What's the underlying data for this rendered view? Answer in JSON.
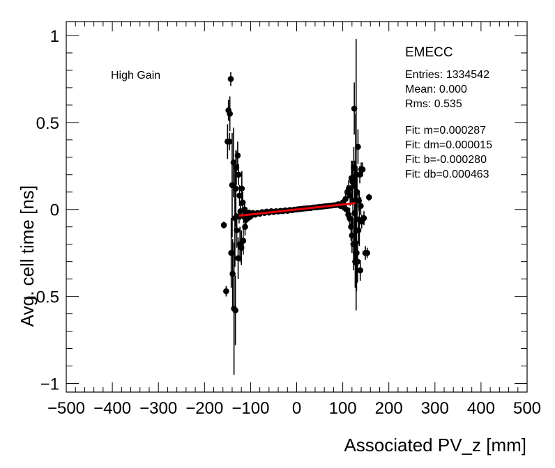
{
  "chart_data": {
    "type": "scatter",
    "xlabel": "Associated PV_z [mm]",
    "ylabel": "Avg. cell time [ns]",
    "xlim": [
      -500,
      500
    ],
    "ylim": [
      -1.05,
      1.08
    ],
    "x_ticks": [
      -500,
      -400,
      -300,
      -200,
      -100,
      0,
      100,
      200,
      300,
      400,
      500
    ],
    "x_tick_labels": [
      "−500",
      "−400",
      "−300",
      "−200",
      "−100",
      "0",
      "100",
      "200",
      "300",
      "400",
      "500"
    ],
    "y_ticks": [
      -1,
      -0.5,
      0,
      0.5,
      1
    ],
    "y_tick_labels": [
      "−1",
      "−0.5",
      "0",
      "0.5",
      "1"
    ],
    "grid": false,
    "annotations": {
      "gain_label": "High Gain",
      "region": "EMECC",
      "stats": [
        "Entries: 1334542",
        "Mean: 0.000",
        "Rms: 0.535"
      ],
      "fit": [
        "Fit: m=0.000287",
        "Fit: dm=0.000015",
        "Fit: b=-0.000280",
        "Fit: db=0.000463"
      ]
    },
    "fit_line": {
      "m": 0.000287,
      "b": -0.00028,
      "x_range": [
        -125,
        128
      ],
      "color": "#e8000b"
    },
    "marker_color": "#000000",
    "points": [
      {
        "x": -158,
        "y": -0.09,
        "e": 0.02
      },
      {
        "x": -153,
        "y": -0.47,
        "e": 0.03
      },
      {
        "x": -150,
        "y": 0.39,
        "e": 0.1
      },
      {
        "x": -148,
        "y": 0.57,
        "e": 0.06
      },
      {
        "x": -146,
        "y": 0.39,
        "e": 0.05
      },
      {
        "x": -145,
        "y": 0.55,
        "e": 0.1
      },
      {
        "x": -143,
        "y": 0.75,
        "e": 0.04
      },
      {
        "x": -142,
        "y": -0.25,
        "e": 0.2
      },
      {
        "x": -140,
        "y": 0.14,
        "e": 0.3
      },
      {
        "x": -139,
        "y": -0.37,
        "e": 0.2
      },
      {
        "x": -137,
        "y": 0.27,
        "e": 0.2
      },
      {
        "x": -136,
        "y": -0.57,
        "e": 0.38
      },
      {
        "x": -134,
        "y": -0.05,
        "e": 0.28
      },
      {
        "x": -133,
        "y": -0.58,
        "e": 0.2
      },
      {
        "x": -132,
        "y": 0.12,
        "e": 0.22
      },
      {
        "x": -131,
        "y": 0.24,
        "e": 0.1
      },
      {
        "x": -130,
        "y": -0.12,
        "e": 0.1
      },
      {
        "x": -128,
        "y": 0.31,
        "e": 0.08
      },
      {
        "x": -127,
        "y": -0.28,
        "e": 0.12
      },
      {
        "x": -126,
        "y": 0.2,
        "e": 0.06
      },
      {
        "x": -125,
        "y": -0.04,
        "e": 0.04
      },
      {
        "x": -124,
        "y": 0.08,
        "e": 0.06
      },
      {
        "x": -123,
        "y": -0.2,
        "e": 0.1
      },
      {
        "x": -122,
        "y": -0.01,
        "e": 0.05
      },
      {
        "x": -120,
        "y": -0.22,
        "e": 0.1
      },
      {
        "x": -119,
        "y": 0.12,
        "e": 0.1
      },
      {
        "x": -117,
        "y": 0.04,
        "e": 0.06
      },
      {
        "x": -116,
        "y": -0.18,
        "e": 0.08
      },
      {
        "x": -115,
        "y": -0.04,
        "e": 0.04
      },
      {
        "x": -113,
        "y": 0.0,
        "e": 0.05
      },
      {
        "x": -112,
        "y": -0.1,
        "e": 0.05
      },
      {
        "x": -110,
        "y": -0.06,
        "e": 0.03
      },
      {
        "x": -108,
        "y": -0.02,
        "e": 0.03
      },
      {
        "x": -106,
        "y": -0.05,
        "e": 0.02
      },
      {
        "x": -103,
        "y": -0.02,
        "e": 0.02
      },
      {
        "x": -100,
        "y": -0.04,
        "e": 0.02
      },
      {
        "x": -95,
        "y": -0.02,
        "e": 0.015
      },
      {
        "x": -90,
        "y": -0.03,
        "e": 0.015
      },
      {
        "x": -85,
        "y": -0.02,
        "e": 0.012
      },
      {
        "x": -80,
        "y": -0.025,
        "e": 0.012
      },
      {
        "x": -75,
        "y": -0.015,
        "e": 0.01
      },
      {
        "x": -70,
        "y": -0.02,
        "e": 0.01
      },
      {
        "x": -65,
        "y": -0.012,
        "e": 0.01
      },
      {
        "x": -60,
        "y": -0.018,
        "e": 0.008
      },
      {
        "x": -55,
        "y": -0.01,
        "e": 0.008
      },
      {
        "x": -50,
        "y": -0.015,
        "e": 0.008
      },
      {
        "x": -45,
        "y": -0.01,
        "e": 0.008
      },
      {
        "x": -40,
        "y": -0.012,
        "e": 0.008
      },
      {
        "x": -35,
        "y": -0.008,
        "e": 0.008
      },
      {
        "x": -30,
        "y": -0.01,
        "e": 0.008
      },
      {
        "x": -25,
        "y": -0.005,
        "e": 0.008
      },
      {
        "x": -20,
        "y": -0.008,
        "e": 0.008
      },
      {
        "x": -15,
        "y": -0.003,
        "e": 0.008
      },
      {
        "x": -10,
        "y": -0.004,
        "e": 0.008
      },
      {
        "x": -5,
        "y": -0.001,
        "e": 0.008
      },
      {
        "x": 0,
        "y": 0.0,
        "e": 0.008
      },
      {
        "x": 5,
        "y": 0.002,
        "e": 0.008
      },
      {
        "x": 10,
        "y": 0.003,
        "e": 0.008
      },
      {
        "x": 15,
        "y": 0.005,
        "e": 0.008
      },
      {
        "x": 20,
        "y": 0.006,
        "e": 0.008
      },
      {
        "x": 25,
        "y": 0.007,
        "e": 0.008
      },
      {
        "x": 30,
        "y": 0.008,
        "e": 0.008
      },
      {
        "x": 35,
        "y": 0.011,
        "e": 0.008
      },
      {
        "x": 40,
        "y": 0.012,
        "e": 0.008
      },
      {
        "x": 45,
        "y": 0.013,
        "e": 0.008
      },
      {
        "x": 50,
        "y": 0.015,
        "e": 0.008
      },
      {
        "x": 55,
        "y": 0.016,
        "e": 0.008
      },
      {
        "x": 60,
        "y": 0.018,
        "e": 0.008
      },
      {
        "x": 65,
        "y": 0.019,
        "e": 0.01
      },
      {
        "x": 70,
        "y": 0.021,
        "e": 0.01
      },
      {
        "x": 75,
        "y": 0.022,
        "e": 0.01
      },
      {
        "x": 80,
        "y": 0.024,
        "e": 0.012
      },
      {
        "x": 85,
        "y": 0.025,
        "e": 0.012
      },
      {
        "x": 90,
        "y": 0.03,
        "e": 0.015
      },
      {
        "x": 95,
        "y": 0.02,
        "e": 0.015
      },
      {
        "x": 100,
        "y": 0.04,
        "e": 0.02
      },
      {
        "x": 103,
        "y": 0.01,
        "e": 0.02
      },
      {
        "x": 106,
        "y": 0.06,
        "e": 0.03
      },
      {
        "x": 108,
        "y": 0.0,
        "e": 0.03
      },
      {
        "x": 110,
        "y": 0.1,
        "e": 0.04
      },
      {
        "x": 112,
        "y": -0.03,
        "e": 0.04
      },
      {
        "x": 113,
        "y": 0.12,
        "e": 0.05
      },
      {
        "x": 115,
        "y": -0.05,
        "e": 0.06
      },
      {
        "x": 116,
        "y": 0.08,
        "e": 0.06
      },
      {
        "x": 118,
        "y": -0.1,
        "e": 0.08
      },
      {
        "x": 119,
        "y": 0.18,
        "e": 0.1
      },
      {
        "x": 120,
        "y": -0.15,
        "e": 0.1
      },
      {
        "x": 121,
        "y": 0.16,
        "e": 0.12
      },
      {
        "x": 122,
        "y": 0.05,
        "e": 0.15
      },
      {
        "x": 123,
        "y": -0.2,
        "e": 0.15
      },
      {
        "x": 124,
        "y": 0.24,
        "e": 0.12
      },
      {
        "x": 125,
        "y": 0.58,
        "e": 0.15
      },
      {
        "x": 126,
        "y": -0.02,
        "e": 0.3
      },
      {
        "x": 127,
        "y": -0.3,
        "e": 0.15
      },
      {
        "x": 128,
        "y": 0.05,
        "e": 0.5
      },
      {
        "x": 129,
        "y": 0.2,
        "e": 0.78
      },
      {
        "x": 130,
        "y": -0.25,
        "e": 0.22
      },
      {
        "x": 131,
        "y": 0.1,
        "e": 0.15
      },
      {
        "x": 132,
        "y": -0.3,
        "e": 0.12
      },
      {
        "x": 133,
        "y": 0.36,
        "e": 0.1
      },
      {
        "x": 134,
        "y": -0.12,
        "e": 0.08
      },
      {
        "x": 135,
        "y": 0.05,
        "e": 0.06
      },
      {
        "x": 136,
        "y": -0.06,
        "e": 0.15
      },
      {
        "x": 137,
        "y": 0.2,
        "e": 0.05
      },
      {
        "x": 138,
        "y": -0.35,
        "e": 0.06
      },
      {
        "x": 139,
        "y": 0.02,
        "e": 0.05
      },
      {
        "x": 140,
        "y": 0.23,
        "e": 0.04
      },
      {
        "x": 141,
        "y": -0.07,
        "e": 0.04
      },
      {
        "x": 143,
        "y": 0.23,
        "e": 0.04
      },
      {
        "x": 146,
        "y": -0.05,
        "e": 0.04
      },
      {
        "x": 149,
        "y": -0.25,
        "e": 0.04
      },
      {
        "x": 153,
        "y": -0.25,
        "e": 0.03
      },
      {
        "x": 157,
        "y": 0.07,
        "e": 0.02
      }
    ]
  }
}
